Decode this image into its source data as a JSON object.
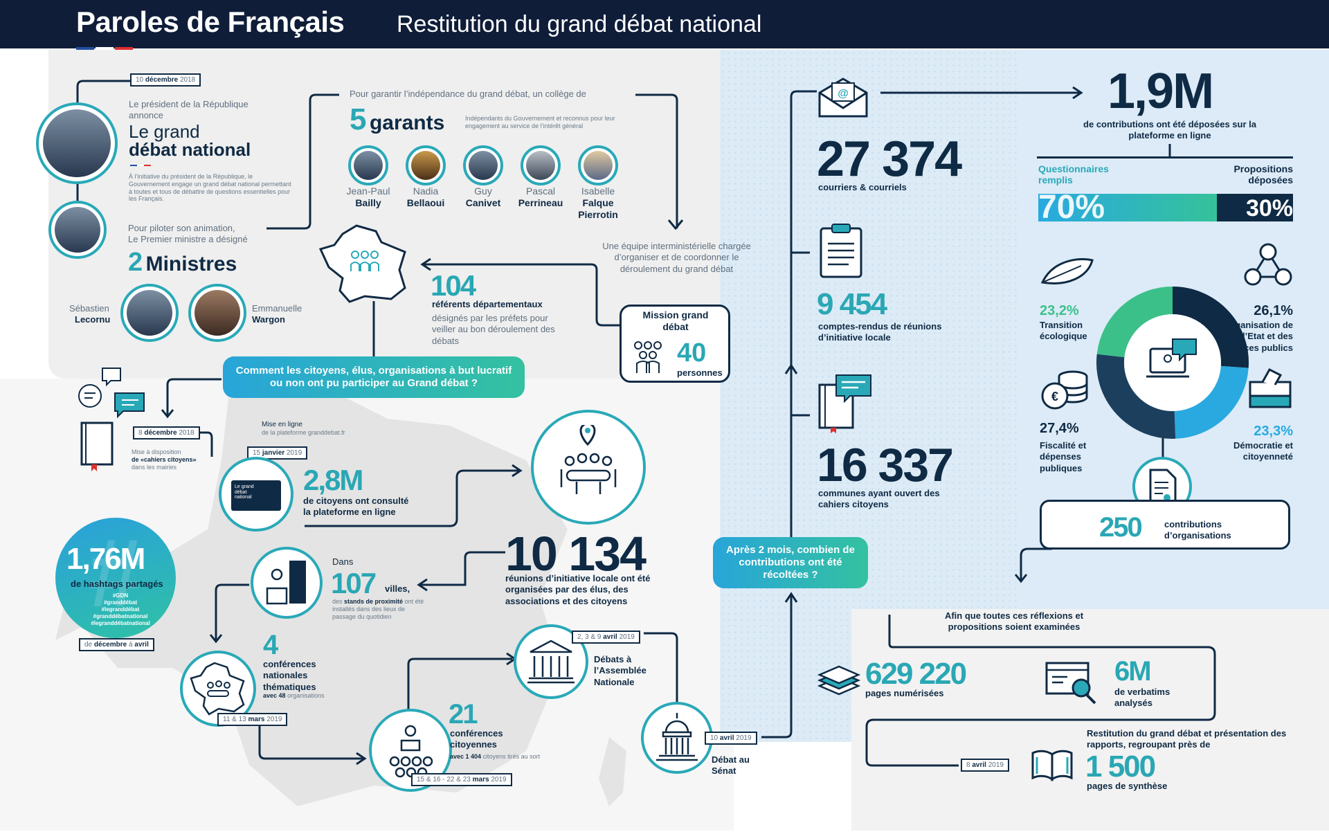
{
  "header": {
    "title": "Paroles de Français",
    "subtitle": "Restitution du grand débat national",
    "flag_colors": [
      "#1f4fa0",
      "#ffffff",
      "#e0302e"
    ]
  },
  "intro": {
    "date_day": "10",
    "date_month": "décembre",
    "date_year": "2018",
    "president_text": "Le président de la République annonce",
    "debate_line1": "Le grand",
    "debate_line2": "débat national",
    "initiative_text": "À l’initiative du président de la République, le Gouvernement engage un grand débat national permettant à toutes et tous de débattre de questions essentielles pour les Français.",
    "pm_text_1": "Pour piloter son animation,",
    "pm_text_2": "Le Premier ministre a désigné",
    "ministers_num": "2",
    "ministers_label": "Ministres",
    "minister1_first": "Sébastien",
    "minister1_last": "Lecornu",
    "minister2_first": "Emmanuelle",
    "minister2_last": "Wargon"
  },
  "garants": {
    "intro": "Pour garantir l’indépendance du grand débat, un collège de",
    "num": "5",
    "label": "garants",
    "desc": "Indépendants du Gouvernement et reconnus pour leur engagement au service de l’intérêt général",
    "people": [
      {
        "first": "Jean-Paul",
        "last": "Bailly"
      },
      {
        "first": "Nadia",
        "last": "Bellaoui"
      },
      {
        "first": "Guy",
        "last": "Canivet"
      },
      {
        "first": "Pascal",
        "last": "Perrineau"
      },
      {
        "first": "Isabelle",
        "last": "Falque Pierrotin"
      }
    ]
  },
  "mission": {
    "team_text": "Une équipe interministérielle chargée d’organiser et de coordonner le déroulement du grand débat",
    "title": "Mission grand débat",
    "num": "40",
    "label": "personnes"
  },
  "referents": {
    "num": "104",
    "label": "référents départementaux",
    "desc": "désignés par les préfets pour veiller au bon déroulement des débats"
  },
  "question1": "Comment les citoyens, élus, organisations à but lucratif ou non ont pu participer au Grand débat ?",
  "cahiers": {
    "date_day": "8",
    "date_month": "décembre",
    "date_year": "2018",
    "text1": "Mise à disposition",
    "text2": "de «cahiers citoyens»",
    "text3": "dans les mairies"
  },
  "platform": {
    "online_title": "Mise en ligne",
    "online_sub": "de la plateforme granddebat.fr",
    "date_day": "15",
    "date_month": "janvier",
    "date_year": "2019",
    "screen_text": "Le grand débat national",
    "num": "2,8M",
    "label1": "de citoyens ont consulté",
    "label2": "la plateforme en ligne"
  },
  "hashtags": {
    "num": "1,76M",
    "label": "de hashtags partagés",
    "tags": [
      "#GDN",
      "#granddébat",
      "#legranddébat",
      "#granddébatnational",
      "#legranddébatnational"
    ],
    "date_from": "de",
    "date_from_month": "décembre",
    "date_to": "à",
    "date_to_month": "avril"
  },
  "reunions": {
    "num": "10 134",
    "label": "réunions d’initiative locale ont été organisées par des élus, des associations et des citoyens"
  },
  "villes": {
    "prefix": "Dans",
    "num": "107",
    "label": "villes,",
    "desc_pre": "des",
    "desc_bold": "stands de proximité",
    "desc_post": "ont été installés dans des lieux de passage du quotidien"
  },
  "conferences_nat": {
    "num": "4",
    "label": "conférences nationales thématiques",
    "sub_pre": "avec 48",
    "sub_post": "organisations",
    "date_pre": "11 & 13",
    "date_month": "mars",
    "date_year": "2019"
  },
  "conferences_cit": {
    "num": "21",
    "label": "conférences citoyennes",
    "sub_pre": "avec 1 404",
    "sub_post": "citoyens tirés au sort",
    "date_pre": "15 & 16 - 22 & 23",
    "date_month": "mars",
    "date_year": "2019"
  },
  "assemblee": {
    "date_pre": "2, 3 & 9",
    "date_month": "avril",
    "date_year": "2019",
    "label": "Débats à l’Assemblée Nationale"
  },
  "senat": {
    "date_pre": "10",
    "date_month": "avril",
    "date_year": "2019",
    "label": "Débat au Sénat"
  },
  "question2": "Après 2 mois, combien de contributions ont été récoltées ?",
  "courriers": {
    "num": "27 374",
    "label": "courriers & courriels"
  },
  "comptes_rendus": {
    "num": "9 454",
    "label": "comptes-rendus de réunions d’initiative locale"
  },
  "communes": {
    "num": "16 337",
    "label": "communes ayant ouvert des cahiers citoyens"
  },
  "contributions": {
    "num": "1,9M",
    "label": "de contributions ont été déposées sur la plateforme en ligne",
    "left_title": "Questionnaires remplis",
    "right_title": "Propositions déposées",
    "pct_left": "70%",
    "pct_right": "30%",
    "share_left": 0.7
  },
  "themes": {
    "items": [
      {
        "pct": "23,2%",
        "label": "Transition écologique",
        "value": 23.2,
        "color": "#3cc08a"
      },
      {
        "pct": "26,1%",
        "label": "Organisation de l’Etat et des services publics",
        "value": 26.1,
        "color": "#0f2a44"
      },
      {
        "pct": "23,3%",
        "label": "Démocratie et citoyenneté",
        "value": 23.3,
        "color": "#29a9e0"
      },
      {
        "pct": "27,4%",
        "label": "Fiscalité et dépenses publiques",
        "value": 27.4,
        "color": "#1d3f5e"
      }
    ]
  },
  "organisations": {
    "num": "250",
    "label": "contributions d’organisations"
  },
  "examen": {
    "text": "Afin que toutes ces réflexions et propositions soient examinées"
  },
  "pages": {
    "num": "629 220",
    "label": "pages numérisées"
  },
  "verbatims": {
    "num": "6M",
    "label": "de verbatims analysés"
  },
  "restitution": {
    "date_pre": "8",
    "date_month": "avril",
    "date_year": "2019",
    "text": "Restitution du grand débat et présentation des rapports, regroupant près de",
    "num": "1 500",
    "label": "pages de synthèse"
  }
}
